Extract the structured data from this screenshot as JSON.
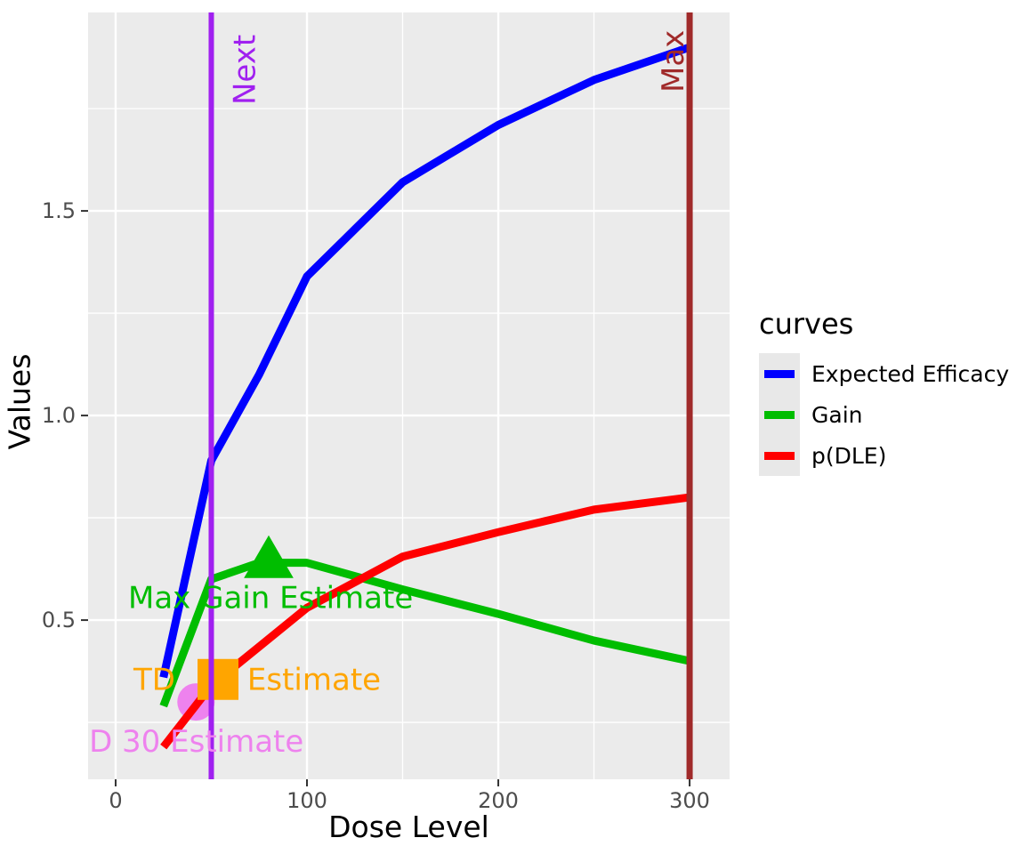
{
  "chart_data": {
    "type": "line",
    "title": "",
    "xlabel": "Dose Level",
    "ylabel": "Values",
    "x_domain": [
      -14.4,
      320.9
    ],
    "y_domain": [
      0.111,
      1.985
    ],
    "x_ticks": [
      0,
      100,
      200,
      300
    ],
    "x_tick_labels": [
      "0",
      "100",
      "200",
      "300"
    ],
    "y_ticks": [
      0.5,
      1.0,
      1.5
    ],
    "y_tick_labels": [
      "0.5",
      "1.0",
      "1.5"
    ],
    "x_minor_gridlines": [
      50,
      150,
      250
    ],
    "y_minor_gridlines": [
      0.25,
      0.75,
      1.25,
      1.75
    ],
    "grid": true,
    "panel_bg": "#ebebeb",
    "grid_color": "#ffffff",
    "tick_label_color": "#4d4d4d",
    "series": [
      {
        "name": "Expected Efficacy",
        "color": "#0000ff",
        "x": [
          25,
          50,
          75,
          100,
          150,
          200,
          250,
          300
        ],
        "y": [
          0.36,
          0.89,
          1.1,
          1.34,
          1.57,
          1.71,
          1.82,
          1.9
        ]
      },
      {
        "name": "Gain",
        "color": "#00bd00",
        "x": [
          25,
          50,
          75,
          100,
          150,
          200,
          250,
          300
        ],
        "y": [
          0.29,
          0.6,
          0.64,
          0.64,
          0.575,
          0.515,
          0.45,
          0.4
        ]
      },
      {
        "name": "p(DLE)",
        "color": "#ff0000",
        "x": [
          25,
          50,
          75,
          100,
          150,
          200,
          250,
          300
        ],
        "y": [
          0.19,
          0.34,
          0.435,
          0.53,
          0.655,
          0.715,
          0.77,
          0.8
        ]
      }
    ],
    "vlines": [
      {
        "x": 50,
        "color": "#a020f0",
        "label": "Next",
        "label_side": "right"
      },
      {
        "x": 300,
        "color": "#a02a2a",
        "label": "Max",
        "label_side": "left"
      }
    ],
    "markers": [
      {
        "shape": "circle",
        "x": 42,
        "y": 0.3,
        "color": "#ee82ee",
        "size": 42,
        "behind_curves": true
      },
      {
        "shape": "triangle",
        "x": 80,
        "y": 0.655,
        "color": "#00bd00",
        "size": 48,
        "behind_curves": false
      },
      {
        "shape": "square",
        "x": 53.5,
        "y": 0.355,
        "color": "#ffa500",
        "size": 46,
        "behind_curves": false
      }
    ],
    "annotations": [
      {
        "text": "Max Gain Estimate",
        "x": 81,
        "y": 0.53,
        "anchor": "middle",
        "color": "#00bd00"
      },
      {
        "text": "TD",
        "x": 9.3,
        "y": 0.33,
        "anchor": "start",
        "color": "#ffa500"
      },
      {
        "text": "Estimate",
        "x": 68.8,
        "y": 0.33,
        "anchor": "start",
        "color": "#ffa500"
      },
      {
        "text": "D 30 Estimate",
        "x": -13.9,
        "y": 0.178,
        "anchor": "start",
        "color": "#ee82ee"
      }
    ],
    "legend": {
      "title": "curves",
      "position": "right",
      "items": [
        {
          "label": "Expected Efficacy",
          "color": "#0000ff"
        },
        {
          "label": "Gain",
          "color": "#00bd00"
        },
        {
          "label": "p(DLE)",
          "color": "#ff0000"
        }
      ]
    }
  }
}
